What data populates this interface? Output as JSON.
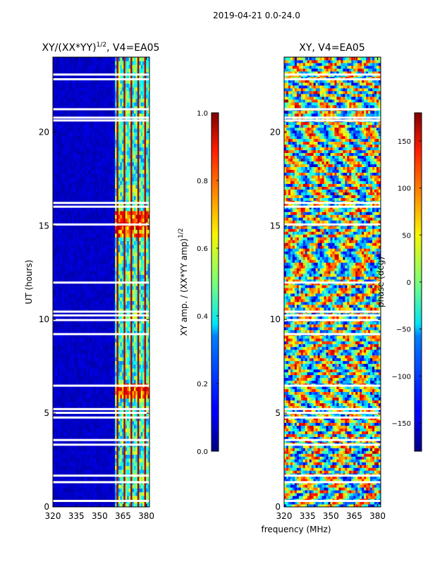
{
  "suptitle": "2019-04-21 0.0-24.0",
  "chart_data": [
    {
      "type": "heatmap",
      "title": "XY/(XX*YY)^(1/2), V4=EA05",
      "title_base": "XY/(XX*YY)",
      "title_exp": "1/2",
      "title_tail": ", V4=EA05",
      "xlabel": "",
      "ylabel": "UT (hours)",
      "xlim": [
        320,
        382
      ],
      "ylim": [
        0,
        24
      ],
      "xticks": [
        320,
        335,
        350,
        365,
        380
      ],
      "xtick_labels": [
        "320",
        "335",
        "350",
        "365",
        "380"
      ],
      "yticks": [
        0,
        5,
        10,
        15,
        20
      ],
      "ytick_labels": [
        "0",
        "5",
        "10",
        "15",
        "20"
      ],
      "colormap": "jet",
      "colorbar": {
        "label": "XY amp. / (XX*YY amp)^(1/2)",
        "label_base": "XY amp. / (XX*YY amp)",
        "label_exp": "1/2",
        "range": [
          0.0,
          1.0
        ],
        "ticks": [
          0.0,
          0.2,
          0.4,
          0.6,
          0.8,
          1.0
        ],
        "tick_labels": [
          "0.0",
          "0.2",
          "0.4",
          "0.6",
          "0.8",
          "1.0"
        ]
      },
      "active_band_mhz": [
        360,
        382
      ],
      "blank_rows_hours": [
        0.3,
        1.3,
        1.65,
        3.3,
        3.55,
        4.75,
        5.0,
        5.2,
        6.45,
        9.2,
        9.95,
        10.2,
        10.4,
        11.95,
        15.05,
        16.0,
        16.2,
        20.6,
        20.75,
        21.2,
        22.8,
        23.05
      ]
    },
    {
      "type": "heatmap",
      "title": "XY, V4=EA05",
      "xlabel": "frequency (MHz)",
      "ylabel": "",
      "xlim": [
        320,
        382
      ],
      "ylim": [
        0,
        24
      ],
      "xticks": [
        320,
        335,
        350,
        365,
        380
      ],
      "xtick_labels": [
        "320",
        "335",
        "350",
        "365",
        "380"
      ],
      "yticks": [
        0,
        5,
        10,
        15,
        20
      ],
      "ytick_labels": [
        "0",
        "5",
        "10",
        "15",
        "20"
      ],
      "colormap": "jet",
      "colorbar": {
        "label": "phase (deg)",
        "range": [
          -180,
          180
        ],
        "ticks": [
          -150,
          -100,
          -50,
          0,
          50,
          100,
          150
        ],
        "tick_labels": [
          "−150",
          "−100",
          "−50",
          "0",
          "50",
          "100",
          "150"
        ]
      },
      "blank_rows_hours": [
        0.3,
        1.3,
        1.65,
        3.3,
        3.55,
        4.75,
        5.0,
        5.2,
        6.45,
        9.2,
        9.95,
        10.2,
        10.4,
        11.95,
        15.05,
        16.0,
        16.2,
        20.6,
        20.75,
        21.2,
        22.8,
        23.05
      ]
    }
  ]
}
